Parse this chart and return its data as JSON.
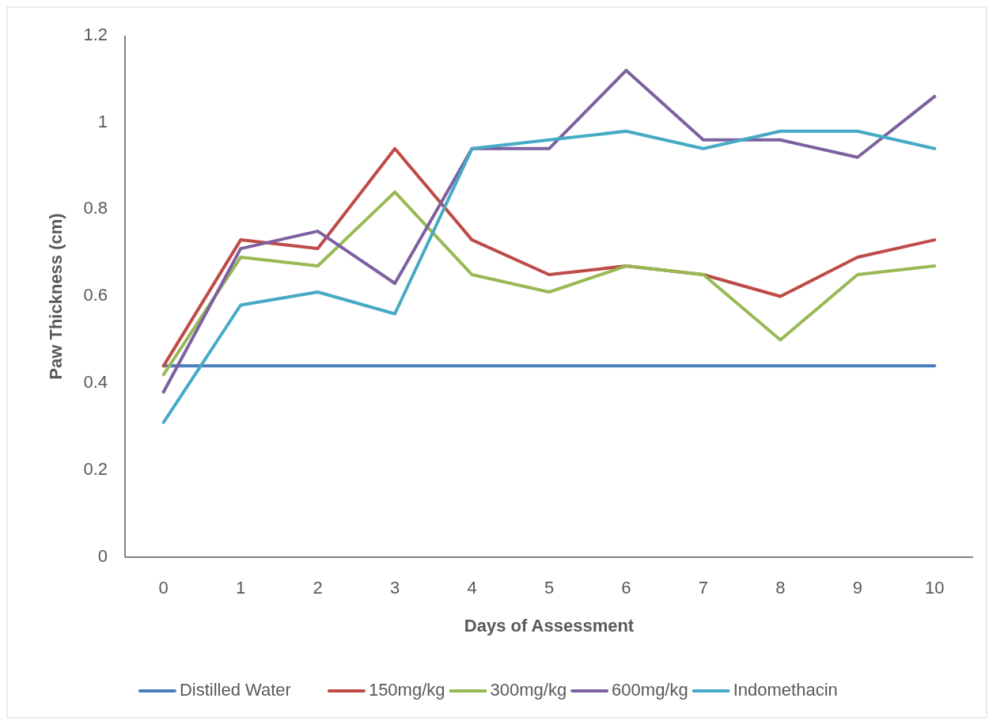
{
  "chart_data": {
    "type": "line",
    "xlabel": "Days of Assessment",
    "ylabel": "Paw Thickness (cm)",
    "categories": [
      "0",
      "1",
      "2",
      "3",
      "4",
      "5",
      "6",
      "7",
      "8",
      "9",
      "10"
    ],
    "ylim": [
      0,
      1.2
    ],
    "yticks": [
      0,
      0.2,
      0.4,
      0.6,
      0.8,
      1,
      1.2
    ],
    "grid": false,
    "legend": "bottom",
    "marker": "none",
    "series": [
      {
        "name": "Distilled Water",
        "color": "#4a7ebb",
        "values": [
          0.44,
          0.44,
          0.44,
          0.44,
          0.44,
          0.44,
          0.44,
          0.44,
          0.44,
          0.44,
          0.44
        ]
      },
      {
        "name": "150mg/kg",
        "color": "#be4b48",
        "values": [
          0.44,
          0.73,
          0.71,
          0.94,
          0.73,
          0.65,
          0.67,
          0.65,
          0.6,
          0.69,
          0.73
        ]
      },
      {
        "name": "300mg/kg",
        "color": "#98b954",
        "values": [
          0.42,
          0.69,
          0.67,
          0.84,
          0.65,
          0.61,
          0.67,
          0.65,
          0.5,
          0.65,
          0.67
        ]
      },
      {
        "name": "600mg/kg",
        "color": "#7d60a0",
        "values": [
          0.38,
          0.71,
          0.75,
          0.63,
          0.94,
          0.94,
          1.12,
          0.96,
          0.96,
          0.92,
          1.06
        ]
      },
      {
        "name": "Indomethacin",
        "color": "#46aac5",
        "values": [
          0.31,
          0.58,
          0.61,
          0.56,
          0.94,
          0.96,
          0.98,
          0.94,
          0.98,
          0.98,
          0.94
        ]
      }
    ]
  }
}
